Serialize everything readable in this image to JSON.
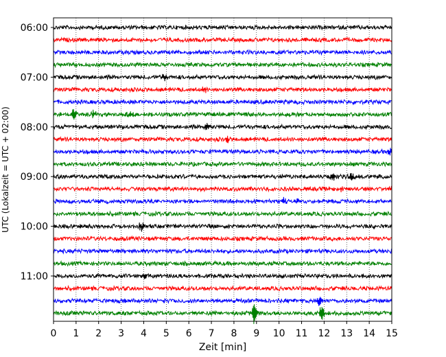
{
  "chart_data": {
    "type": "line",
    "subtype": "helicorder",
    "title": "",
    "xlabel": "Zeit  [min]",
    "ylabel": "UTC (Lokalzeit = UTC + 02:00)",
    "xlim": [
      0,
      15
    ],
    "x_ticks": [
      0,
      1,
      2,
      3,
      4,
      5,
      6,
      7,
      8,
      9,
      10,
      11,
      12,
      13,
      14,
      15
    ],
    "grid": "vertical dotted lines at each minute",
    "y_tick_labels": [
      "06:00",
      "07:00",
      "08:00",
      "09:00",
      "10:00",
      "11:00"
    ],
    "trace_color_cycle": [
      "#000000",
      "#ff0000",
      "#0000ff",
      "#008000"
    ],
    "traces": [
      {
        "start": "06:00",
        "color": "#000000",
        "events": []
      },
      {
        "start": "06:15",
        "color": "#ff0000",
        "events": []
      },
      {
        "start": "06:30",
        "color": "#0000ff",
        "events": []
      },
      {
        "start": "06:45",
        "color": "#008000",
        "events": []
      },
      {
        "start": "07:00",
        "color": "#000000",
        "events": [
          {
            "minute": 4.9,
            "amplitude": 0.9
          }
        ]
      },
      {
        "start": "07:15",
        "color": "#ff0000",
        "events": [
          {
            "minute": 6.7,
            "amplitude": 0.6
          }
        ]
      },
      {
        "start": "07:30",
        "color": "#0000ff",
        "events": []
      },
      {
        "start": "07:45",
        "color": "#008000",
        "events": [
          {
            "minute": 0.9,
            "amplitude": 1.4
          },
          {
            "minute": 1.8,
            "amplitude": 0.8
          },
          {
            "minute": 3.4,
            "amplitude": 0.7
          }
        ]
      },
      {
        "start": "08:00",
        "color": "#000000",
        "events": [
          {
            "minute": 6.8,
            "amplitude": 0.8
          }
        ]
      },
      {
        "start": "08:15",
        "color": "#ff0000",
        "events": [
          {
            "minute": 7.7,
            "amplitude": 0.7
          }
        ]
      },
      {
        "start": "08:30",
        "color": "#0000ff",
        "events": [
          {
            "minute": 14.9,
            "amplitude": 0.6
          }
        ]
      },
      {
        "start": "08:45",
        "color": "#008000",
        "events": []
      },
      {
        "start": "09:00",
        "color": "#000000",
        "events": [
          {
            "minute": 12.4,
            "amplitude": 0.9
          },
          {
            "minute": 13.2,
            "amplitude": 0.8
          }
        ]
      },
      {
        "start": "09:15",
        "color": "#ff0000",
        "events": [
          {
            "minute": 12.8,
            "amplitude": 0.5
          }
        ]
      },
      {
        "start": "09:30",
        "color": "#0000ff",
        "events": [
          {
            "minute": 10.2,
            "amplitude": 0.7
          },
          {
            "minute": 10.8,
            "amplitude": 0.5
          }
        ]
      },
      {
        "start": "09:45",
        "color": "#008000",
        "events": []
      },
      {
        "start": "10:00",
        "color": "#000000",
        "events": [
          {
            "minute": 3.9,
            "amplitude": 1.0
          }
        ]
      },
      {
        "start": "10:15",
        "color": "#ff0000",
        "events": []
      },
      {
        "start": "10:30",
        "color": "#0000ff",
        "events": []
      },
      {
        "start": "10:45",
        "color": "#008000",
        "events": []
      },
      {
        "start": "11:00",
        "color": "#000000",
        "events": [
          {
            "minute": 4.0,
            "amplitude": 0.4
          }
        ]
      },
      {
        "start": "11:15",
        "color": "#ff0000",
        "events": []
      },
      {
        "start": "11:30",
        "color": "#0000ff",
        "events": [
          {
            "minute": 11.8,
            "amplitude": 1.0
          }
        ]
      },
      {
        "start": "11:45",
        "color": "#008000",
        "events": [
          {
            "minute": 8.9,
            "amplitude": 2.2
          },
          {
            "minute": 11.9,
            "amplitude": 1.6
          }
        ]
      }
    ]
  }
}
